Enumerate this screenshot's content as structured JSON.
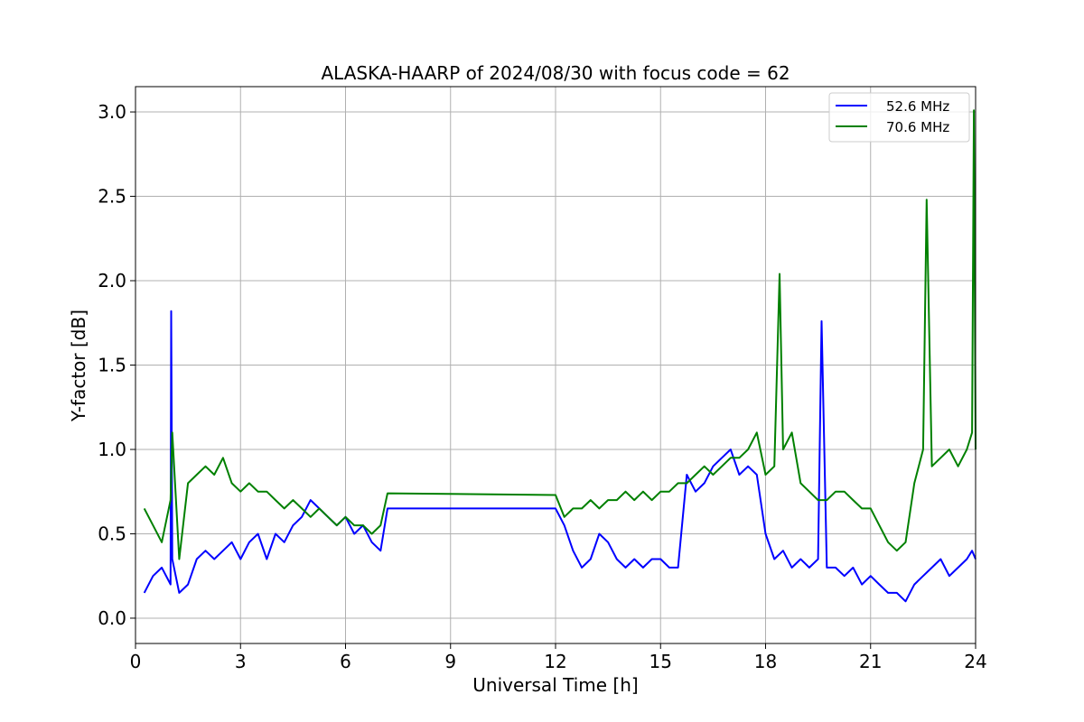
{
  "chart_data": {
    "type": "line",
    "title": "ALASKA-HAARP of 2024/08/30 with focus code = 62",
    "xlabel": "Universal Time [h]",
    "ylabel": "Y-factor [dB]",
    "xlim": [
      0,
      24
    ],
    "ylim": [
      -0.15,
      3.15
    ],
    "xticks": [
      0,
      3,
      6,
      9,
      12,
      15,
      18,
      21,
      24
    ],
    "xtick_labels": [
      "0",
      "3",
      "6",
      "9",
      "12",
      "15",
      "18",
      "21",
      "24"
    ],
    "yticks": [
      0.0,
      0.5,
      1.0,
      1.5,
      2.0,
      2.5,
      3.0
    ],
    "ytick_labels": [
      "0.0",
      "0.5",
      "1.0",
      "1.5",
      "2.0",
      "2.5",
      "3.0"
    ],
    "grid": true,
    "legend_position": "upper right",
    "series": [
      {
        "name": "52.6 MHz",
        "color": "#0000ff",
        "x": [
          0.25,
          0.5,
          0.75,
          1.0,
          1.02,
          1.05,
          1.25,
          1.5,
          1.75,
          2.0,
          2.25,
          2.5,
          2.75,
          3.0,
          3.25,
          3.5,
          3.75,
          4.0,
          4.25,
          4.5,
          4.75,
          5.0,
          5.25,
          5.5,
          5.75,
          6.0,
          6.25,
          6.5,
          6.75,
          7.0,
          7.2,
          12.0,
          12.25,
          12.5,
          12.75,
          13.0,
          13.25,
          13.5,
          13.75,
          14.0,
          14.25,
          14.5,
          14.75,
          15.0,
          15.25,
          15.5,
          15.75,
          16.0,
          16.25,
          16.5,
          16.75,
          17.0,
          17.25,
          17.5,
          17.75,
          18.0,
          18.25,
          18.5,
          18.75,
          19.0,
          19.25,
          19.5,
          19.6,
          19.75,
          20.0,
          20.25,
          20.5,
          20.75,
          21.0,
          21.25,
          21.5,
          21.75,
          22.0,
          22.25,
          22.5,
          22.75,
          23.0,
          23.25,
          23.5,
          23.75,
          23.9,
          24.0
        ],
        "values": [
          0.15,
          0.25,
          0.3,
          0.2,
          1.82,
          0.35,
          0.15,
          0.2,
          0.35,
          0.4,
          0.35,
          0.4,
          0.45,
          0.35,
          0.45,
          0.5,
          0.35,
          0.5,
          0.45,
          0.55,
          0.6,
          0.7,
          0.65,
          0.6,
          0.55,
          0.6,
          0.5,
          0.55,
          0.45,
          0.4,
          0.65,
          0.65,
          0.55,
          0.4,
          0.3,
          0.35,
          0.5,
          0.45,
          0.35,
          0.3,
          0.35,
          0.3,
          0.35,
          0.35,
          0.3,
          0.3,
          0.85,
          0.75,
          0.8,
          0.9,
          0.95,
          1.0,
          0.85,
          0.9,
          0.85,
          0.5,
          0.35,
          0.4,
          0.3,
          0.35,
          0.3,
          0.35,
          1.76,
          0.3,
          0.3,
          0.25,
          0.3,
          0.2,
          0.25,
          0.2,
          0.15,
          0.15,
          0.1,
          0.2,
          0.25,
          0.3,
          0.35,
          0.25,
          0.3,
          0.35,
          0.4,
          0.35
        ]
      },
      {
        "name": "70.6 MHz",
        "color": "#008000",
        "x": [
          0.25,
          0.5,
          0.75,
          1.0,
          1.05,
          1.25,
          1.5,
          1.75,
          2.0,
          2.25,
          2.5,
          2.75,
          3.0,
          3.25,
          3.5,
          3.75,
          4.0,
          4.25,
          4.5,
          4.75,
          5.0,
          5.25,
          5.5,
          5.75,
          6.0,
          6.25,
          6.5,
          6.75,
          7.0,
          7.2,
          12.0,
          12.25,
          12.5,
          12.75,
          13.0,
          13.25,
          13.5,
          13.75,
          14.0,
          14.25,
          14.5,
          14.75,
          15.0,
          15.25,
          15.5,
          15.75,
          16.0,
          16.25,
          16.5,
          16.75,
          17.0,
          17.25,
          17.5,
          17.75,
          18.0,
          18.25,
          18.4,
          18.5,
          18.75,
          19.0,
          19.25,
          19.5,
          19.75,
          20.0,
          20.25,
          20.5,
          20.75,
          21.0,
          21.25,
          21.5,
          21.75,
          22.0,
          22.25,
          22.5,
          22.6,
          22.75,
          23.0,
          23.25,
          23.5,
          23.75,
          23.9,
          23.95,
          24.0
        ],
        "values": [
          0.65,
          0.55,
          0.45,
          0.7,
          1.1,
          0.35,
          0.8,
          0.85,
          0.9,
          0.85,
          0.95,
          0.8,
          0.75,
          0.8,
          0.75,
          0.75,
          0.7,
          0.65,
          0.7,
          0.65,
          0.6,
          0.65,
          0.6,
          0.55,
          0.6,
          0.55,
          0.55,
          0.5,
          0.55,
          0.74,
          0.73,
          0.6,
          0.65,
          0.65,
          0.7,
          0.65,
          0.7,
          0.7,
          0.75,
          0.7,
          0.75,
          0.7,
          0.75,
          0.75,
          0.8,
          0.8,
          0.85,
          0.9,
          0.85,
          0.9,
          0.95,
          0.95,
          1.0,
          1.1,
          0.85,
          0.9,
          2.04,
          1.0,
          1.1,
          0.8,
          0.75,
          0.7,
          0.7,
          0.75,
          0.75,
          0.7,
          0.65,
          0.65,
          0.55,
          0.45,
          0.4,
          0.45,
          0.8,
          1.0,
          2.48,
          0.9,
          0.95,
          1.0,
          0.9,
          1.0,
          1.1,
          3.01,
          1.0
        ]
      }
    ]
  }
}
